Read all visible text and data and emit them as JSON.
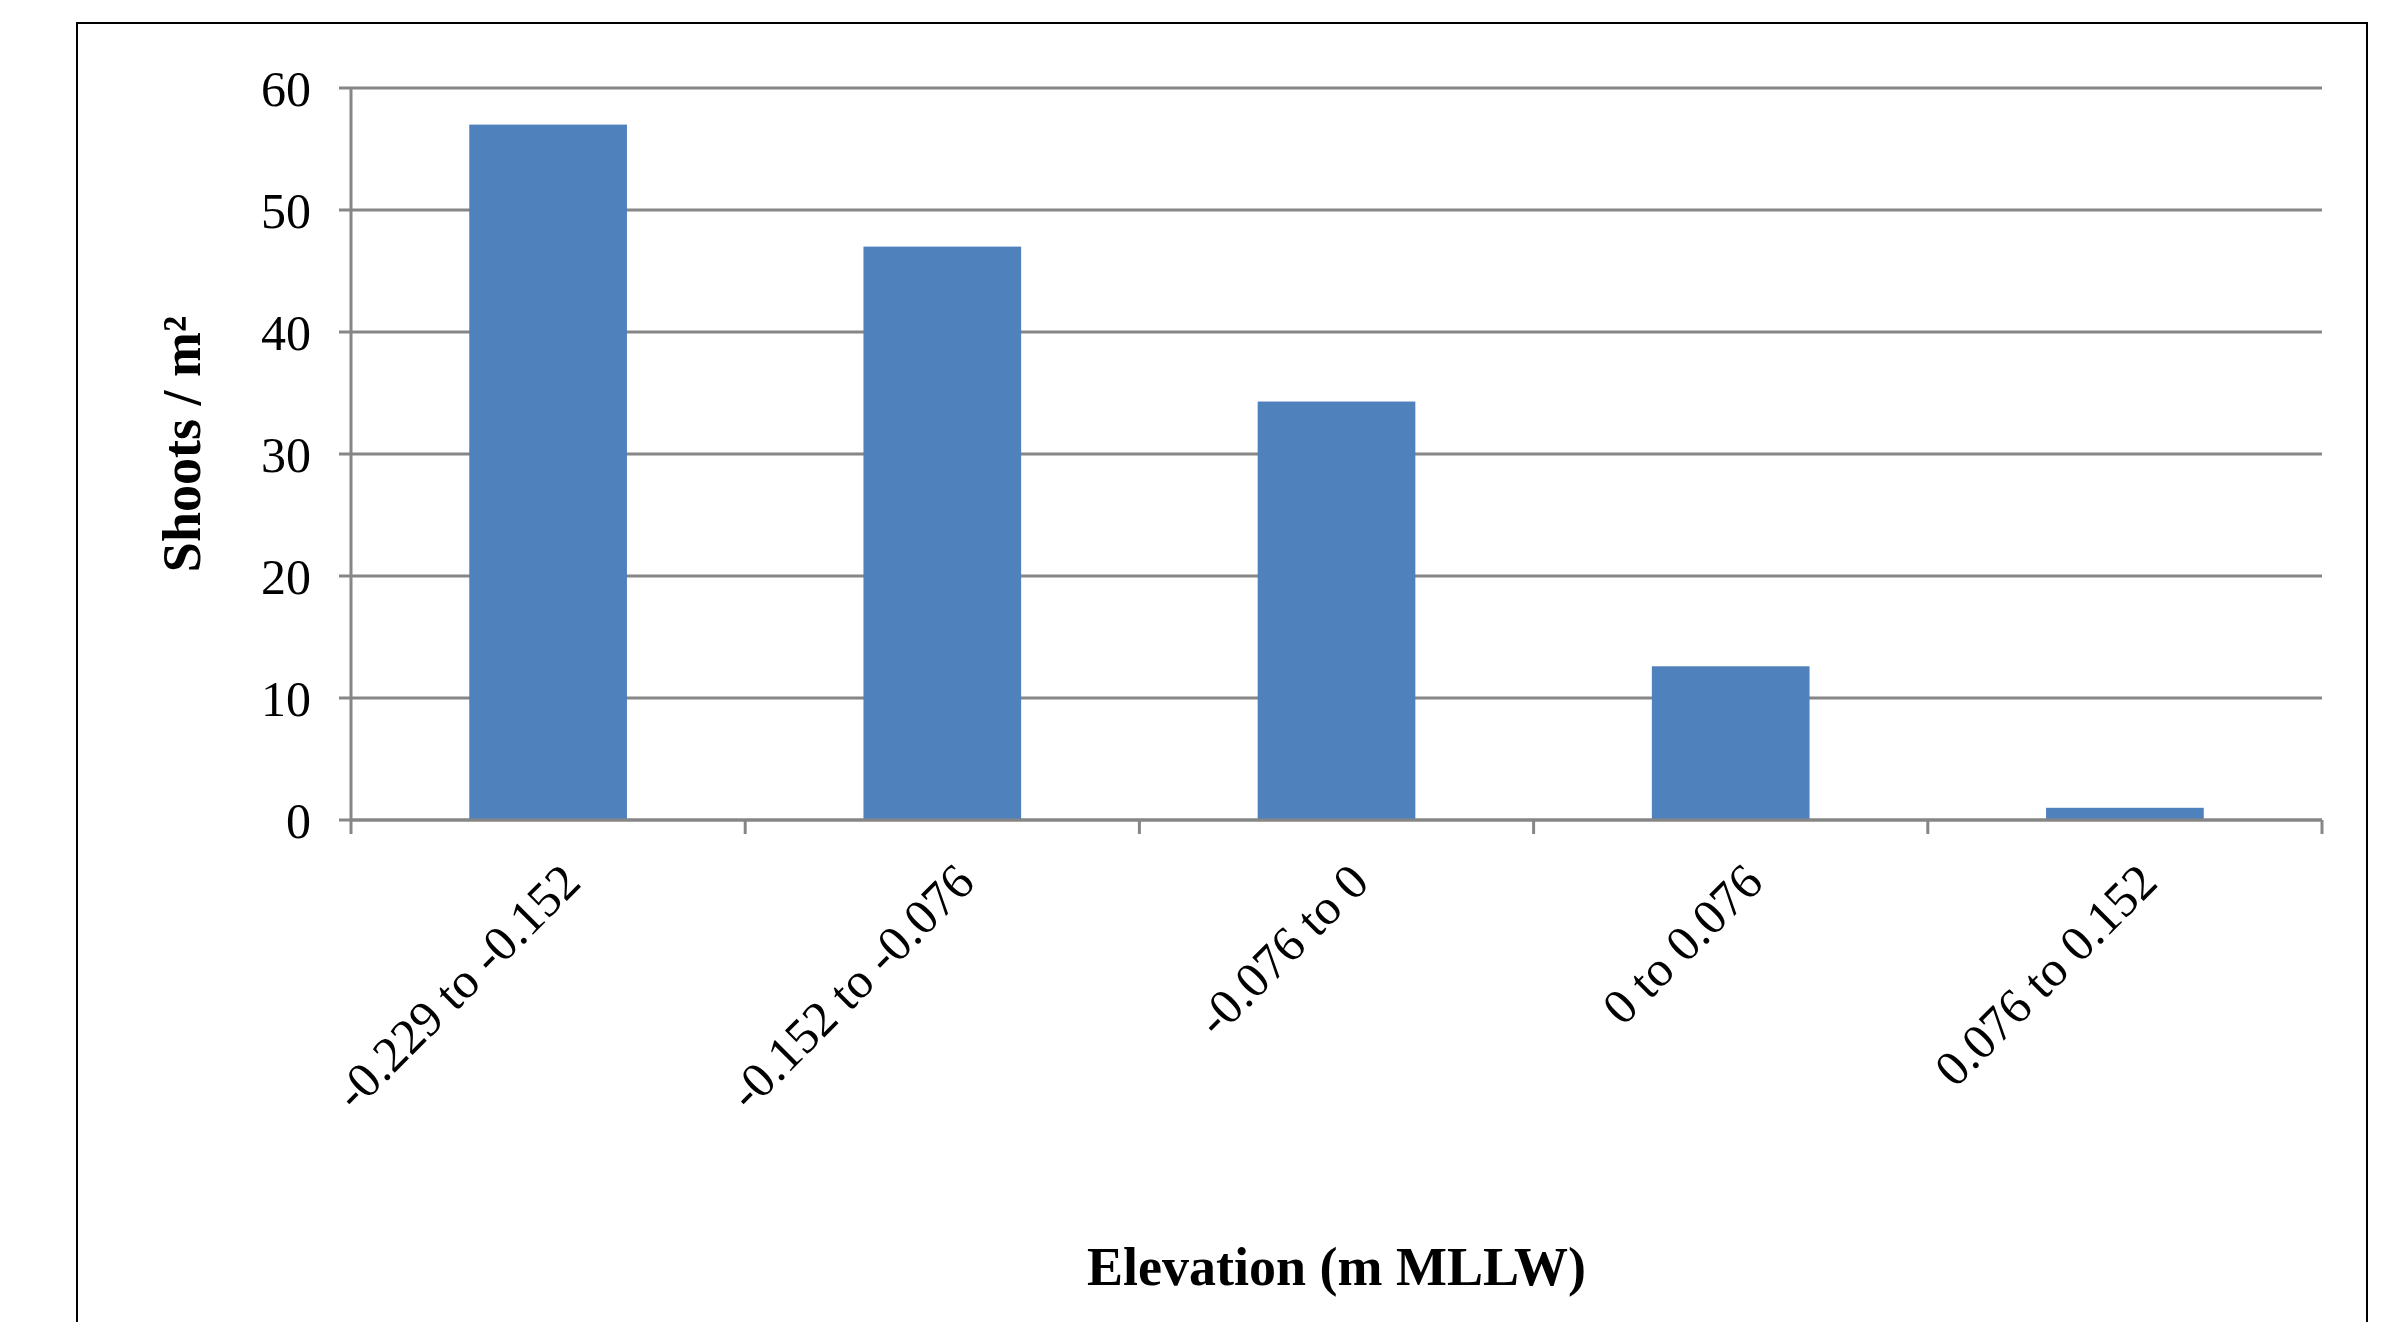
{
  "chart_data": {
    "type": "bar",
    "xlabel": "Elevation (m MLLW)",
    "ylabel": "Shoots / m²",
    "categories": [
      "-0.229 to -0.152",
      "-0.152 to -0.076",
      "-0.076 to 0",
      "0 to 0.076",
      "0.076 to 0.152"
    ],
    "values": [
      57,
      47,
      34.3,
      12.6,
      1
    ],
    "color": "#4f81bd",
    "ylim": [
      0,
      60
    ],
    "yticks": [
      0,
      10,
      20,
      30,
      40,
      50,
      60
    ],
    "grid": "y"
  }
}
